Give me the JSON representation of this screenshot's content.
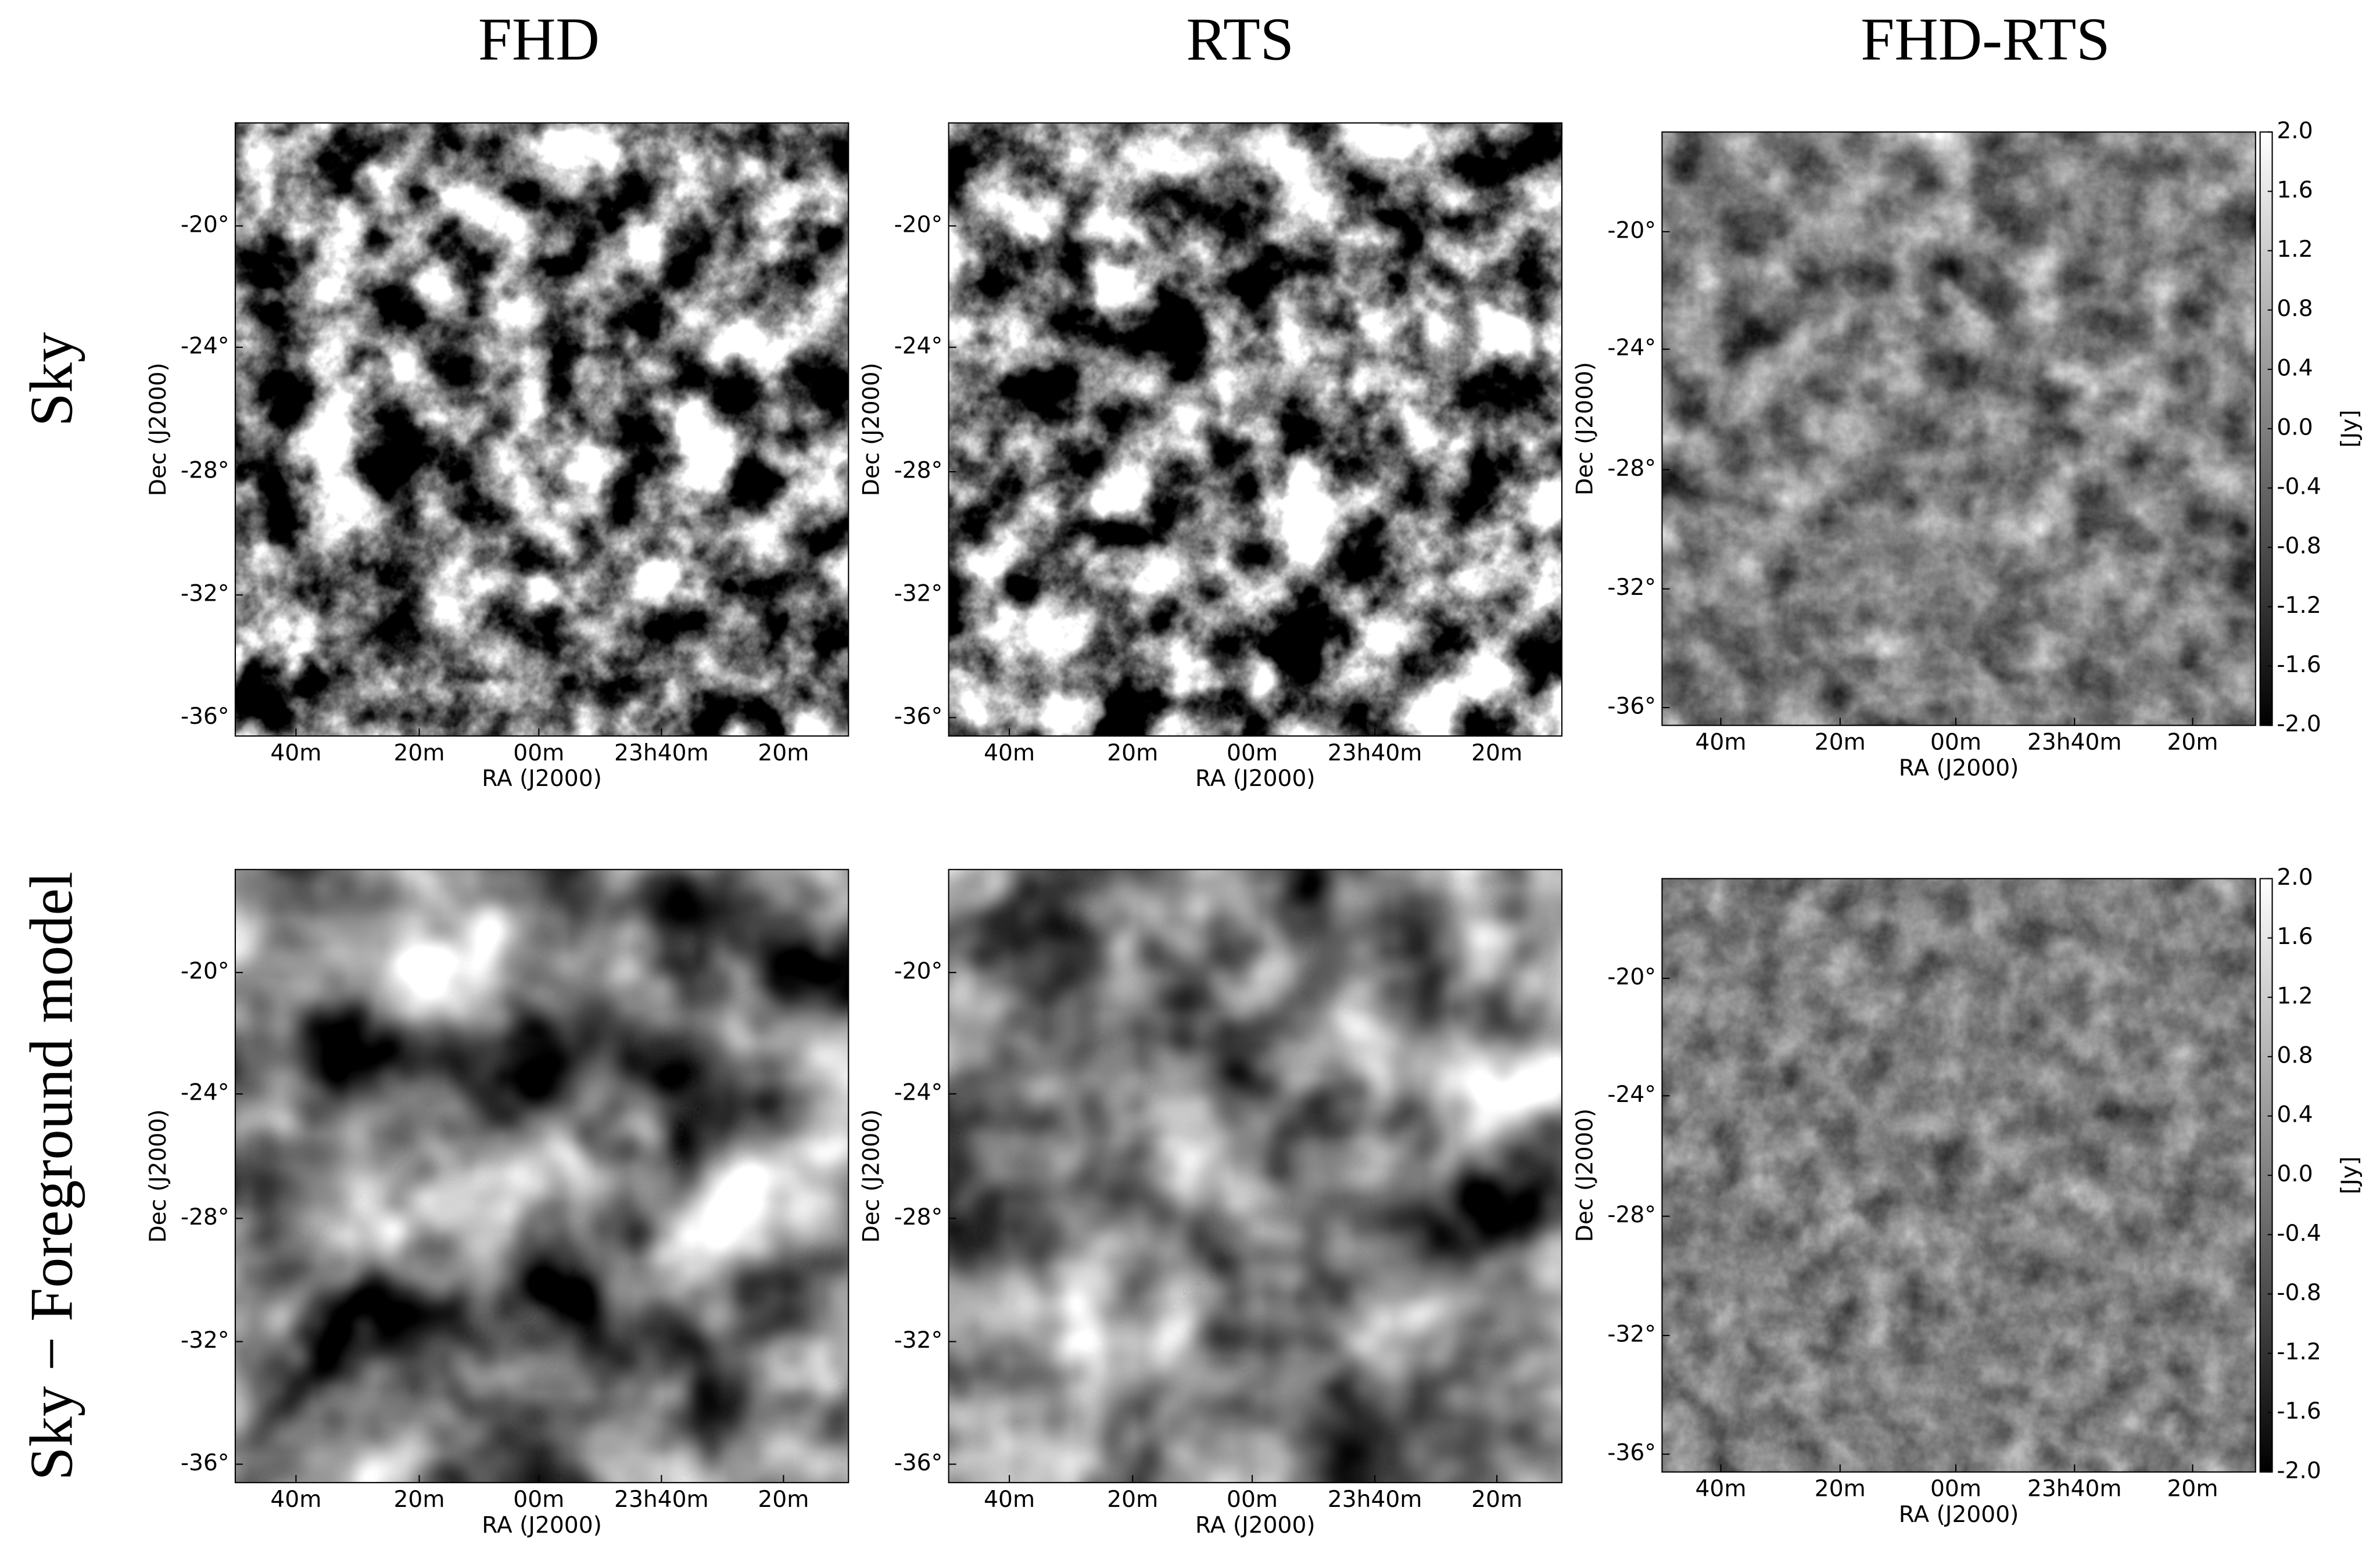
{
  "columns": [
    "FHD",
    "RTS",
    "FHD-RTS"
  ],
  "rows": [
    "Sky",
    "Sky − Foreground model"
  ],
  "x_axis": {
    "label": "RA (J2000)",
    "ticks": [
      "40m",
      "20m",
      "00m",
      "23h40m",
      "20m"
    ]
  },
  "y_axis": {
    "label": "Dec (J2000)",
    "ticks": [
      "-20°",
      "-24°",
      "-28°",
      "-32°",
      "-36°"
    ]
  },
  "colorbar": {
    "label": "[Jy]",
    "ticks": [
      "2.0",
      "1.6",
      "1.2",
      "0.8",
      "0.4",
      "0.0",
      "-0.4",
      "-0.8",
      "-1.2",
      "-1.6",
      "-2.0"
    ]
  }
}
